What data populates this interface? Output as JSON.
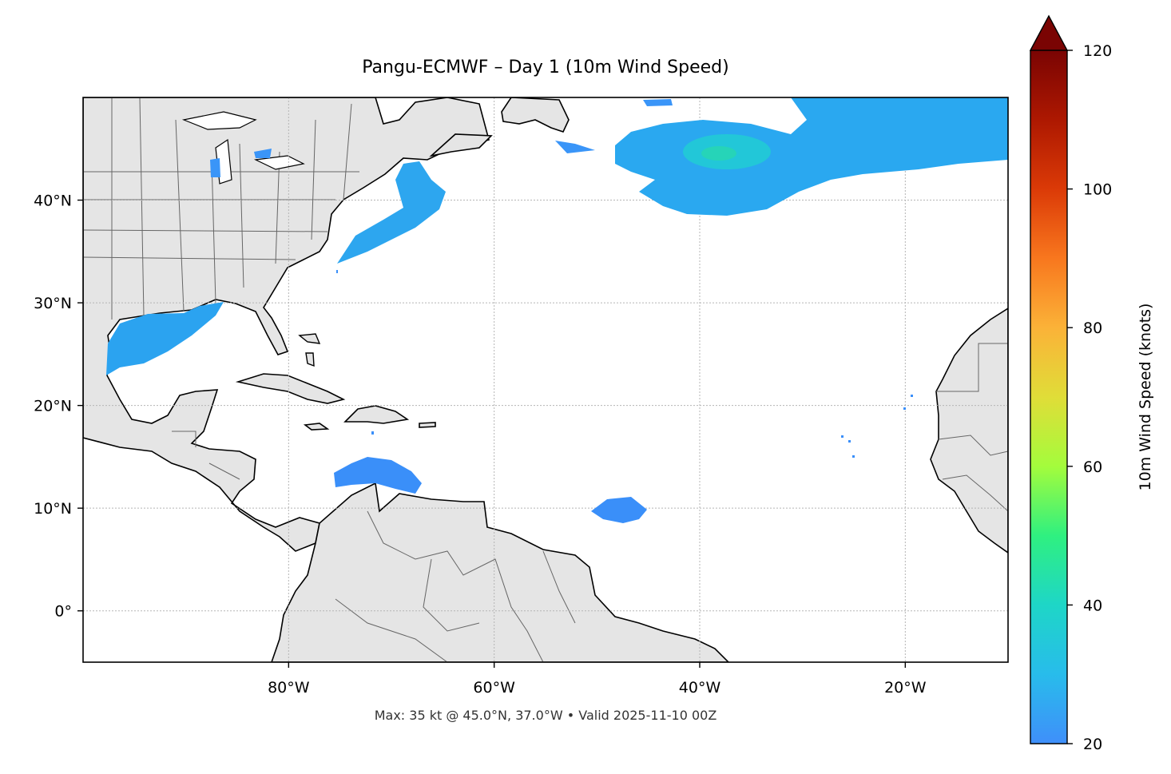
{
  "title": "Pangu-ECMWF – Day 1 (10m Wind Speed)",
  "footer": "Max: 35 kt @ 45.0°N, 37.0°W • Valid 2025-11-10 00Z",
  "map": {
    "extent": {
      "lon": [
        -100,
        -10
      ],
      "lat": [
        -5,
        50
      ]
    },
    "x_ticks": [
      {
        "lon": -80,
        "label": "80°W"
      },
      {
        "lon": -60,
        "label": "60°W"
      },
      {
        "lon": -40,
        "label": "40°W"
      },
      {
        "lon": -20,
        "label": "20°W"
      }
    ],
    "y_ticks": [
      {
        "lat": 40,
        "label": "40°N"
      },
      {
        "lat": 30,
        "label": "30°N"
      },
      {
        "lat": 20,
        "label": "20°N"
      },
      {
        "lat": 10,
        "label": "10°N"
      },
      {
        "lat": 0,
        "label": "0°"
      }
    ],
    "land_color": "#e5e5e5",
    "coast_color": "#000000",
    "border_color": "#666666",
    "wind_regions": [
      {
        "name": "North Atlantic jet",
        "approx_lat": 44,
        "approx_lon": -30,
        "peak_kt": 35
      },
      {
        "name": "Gulf of Mexico",
        "approx_lat": 27,
        "approx_lon": -93,
        "peak_kt": 25
      },
      {
        "name": "US East Coast",
        "approx_lat": 39,
        "approx_lon": -70,
        "peak_kt": 24
      },
      {
        "name": "Caribbean Sea",
        "approx_lat": 13,
        "approx_lon": -70,
        "peak_kt": 22
      },
      {
        "name": "Tropical Atlantic",
        "approx_lat": 10,
        "approx_lon": -48,
        "peak_kt": 21
      }
    ]
  },
  "colorbar": {
    "label": "10m Wind Speed (knots)",
    "range": [
      20,
      120
    ],
    "extend": "max",
    "ticks": [
      {
        "value": 20,
        "label": "20"
      },
      {
        "value": 40,
        "label": "40"
      },
      {
        "value": 60,
        "label": "60"
      },
      {
        "value": 80,
        "label": "80"
      },
      {
        "value": 100,
        "label": "100"
      },
      {
        "value": 120,
        "label": "120"
      }
    ],
    "colors": [
      "#3f8ffa",
      "#28bceb",
      "#1ed6c7",
      "#2ff080",
      "#a4fc3c",
      "#e0dd38",
      "#fbb238",
      "#f8771e",
      "#db3a07",
      "#ad1801",
      "#7a0403"
    ]
  }
}
